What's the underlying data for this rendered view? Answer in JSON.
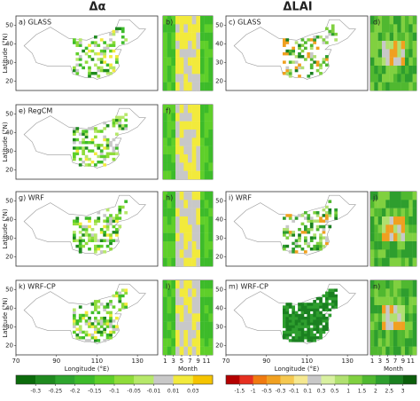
{
  "columns": [
    {
      "title": "Δα"
    },
    {
      "title": "ΔLAI"
    }
  ],
  "panels": [
    {
      "label": "a) GLASS"
    },
    {
      "label": "b)"
    },
    {
      "label": "c) GLASS"
    },
    {
      "label": "d)"
    },
    {
      "label": "e) RegCM"
    },
    {
      "label": "f)"
    },
    {
      "label": "g) WRF"
    },
    {
      "label": "h)"
    },
    {
      "label": "i) WRF"
    },
    {
      "label": "j)"
    },
    {
      "label": "k) WRF-CP"
    },
    {
      "label": "l)"
    },
    {
      "label": "m) WRF-CP"
    },
    {
      "label": "n)"
    }
  ],
  "axes": {
    "lat_label": "Latitude (°N)",
    "lon_label": "Longitude (°E)",
    "month_label": "Month",
    "lat_ticks": [
      20,
      30,
      40,
      50
    ],
    "lon_ticks": [
      70,
      90,
      110,
      130
    ],
    "month_ticks": [
      1,
      3,
      5,
      7,
      9,
      11
    ]
  },
  "colorbars": [
    {
      "ticks": [
        -0.3,
        -0.25,
        -0.2,
        -0.15,
        -0.1,
        -0.05,
        -0.01,
        0.01,
        0.03
      ],
      "colors": [
        "#0b6b0b",
        "#1f8a1f",
        "#2ea52e",
        "#3dbb2a",
        "#5fcf2a",
        "#8fdc3a",
        "#b6e86a",
        "#c8c8c8",
        "#f2ea3c",
        "#f5c400"
      ]
    },
    {
      "ticks": [
        -1.5,
        -1,
        -0.5,
        -0.3,
        -0.1,
        0.1,
        0.3,
        0.5,
        1,
        1.5,
        2,
        2.5,
        3
      ],
      "colors": [
        "#b40000",
        "#e63020",
        "#f07a10",
        "#f0a020",
        "#f5c850",
        "#f5e890",
        "#c8c8c8",
        "#d8f0a0",
        "#b0e070",
        "#80d040",
        "#50b830",
        "#2e9e2e",
        "#1a8020",
        "#0b5e0b"
      ]
    }
  ]
}
